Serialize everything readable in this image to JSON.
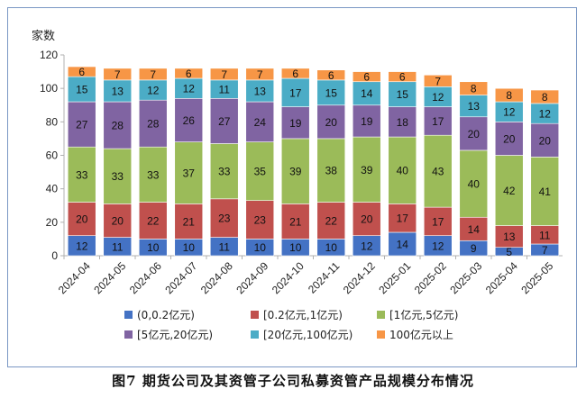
{
  "figure": {
    "caption": "图7   期货公司及其资管子公司私募资管产品规模分布情况"
  },
  "chart_data": {
    "type": "bar",
    "stacked": true,
    "ylabel": "家数",
    "ylim": [
      0,
      120
    ],
    "yticks": [
      0,
      20,
      40,
      60,
      80,
      100,
      120
    ],
    "categories": [
      "2024-04",
      "2024-05",
      "2024-06",
      "2024-07",
      "2024-08",
      "2024-09",
      "2024-10",
      "2024-11",
      "2024-12",
      "2025-01",
      "2025-02",
      "2025-03",
      "2025-04",
      "2025-05"
    ],
    "series": [
      {
        "name": "(0,0.2亿元)",
        "color": "#4472c4",
        "values": [
          12,
          11,
          10,
          10,
          11,
          10,
          10,
          10,
          12,
          14,
          12,
          9,
          5,
          7
        ]
      },
      {
        "name": "[0.2亿元,1亿元)",
        "color": "#c0504d",
        "values": [
          20,
          20,
          22,
          21,
          23,
          23,
          21,
          22,
          20,
          17,
          17,
          14,
          13,
          11
        ]
      },
      {
        "name": "[1亿元,5亿元)",
        "color": "#9bbb59",
        "values": [
          33,
          33,
          33,
          37,
          33,
          35,
          39,
          38,
          39,
          40,
          43,
          40,
          42,
          41
        ]
      },
      {
        "name": "[5亿元,20亿元)",
        "color": "#8064a2",
        "values": [
          27,
          28,
          28,
          26,
          27,
          24,
          19,
          20,
          19,
          18,
          17,
          20,
          20,
          20
        ]
      },
      {
        "name": "[20亿元,100亿元)",
        "color": "#4bacc6",
        "values": [
          15,
          13,
          12,
          12,
          11,
          13,
          17,
          15,
          14,
          15,
          12,
          13,
          12,
          12
        ]
      },
      {
        "name": "100亿元以上",
        "color": "#f79646",
        "values": [
          6,
          7,
          7,
          6,
          7,
          7,
          6,
          6,
          6,
          6,
          7,
          8,
          8,
          8
        ]
      }
    ],
    "legend_position": "bottom",
    "grid": false
  }
}
